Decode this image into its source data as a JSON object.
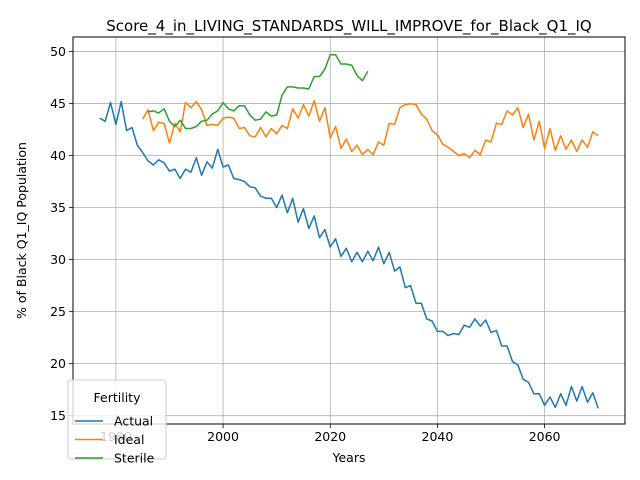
{
  "chart_data": {
    "type": "line",
    "title": "Score_4_in_LIVING_STANDARDS_WILL_IMPROVE_for_Black_Q1_IQ",
    "xlabel": "Years",
    "ylabel": "% of Black Q1_IQ Population",
    "xlim": [
      1972,
      2075
    ],
    "ylim": [
      14.2,
      51.4
    ],
    "xticks": [
      1980,
      2000,
      2020,
      2040,
      2060
    ],
    "yticks": [
      15,
      20,
      25,
      30,
      35,
      40,
      45,
      50
    ],
    "grid": true,
    "legend": {
      "title": "Fertility",
      "placement": "lower-left"
    },
    "series": [
      {
        "name": "Actual",
        "color": "#1f77b4",
        "x": [
          1977,
          1978,
          1979,
          1980,
          1981,
          1982,
          1983,
          1984,
          1985,
          1986,
          1987,
          1988,
          1989,
          1990,
          1991,
          1992,
          1993,
          1994,
          1995,
          1996,
          1997,
          1998,
          1999,
          2000,
          2001,
          2002,
          2003,
          2004,
          2005,
          2006,
          2007,
          2008,
          2009,
          2010,
          2011,
          2012,
          2013,
          2014,
          2015,
          2016,
          2017,
          2018,
          2019,
          2020,
          2021,
          2022,
          2023,
          2024,
          2025,
          2026,
          2027,
          2028,
          2029,
          2030,
          2031,
          2032,
          2033,
          2034,
          2035,
          2036,
          2037,
          2038,
          2039,
          2040,
          2041,
          2042,
          2043,
          2044,
          2045,
          2046,
          2047,
          2048,
          2049,
          2050,
          2051,
          2052,
          2053,
          2054,
          2055,
          2056,
          2057,
          2058,
          2059,
          2060,
          2061,
          2062,
          2063,
          2064,
          2065,
          2066,
          2067,
          2068,
          2069,
          2070
        ],
        "values": [
          43.6,
          43.3,
          45.1,
          43.0,
          45.2,
          42.4,
          42.7,
          41.0,
          40.3,
          39.5,
          39.1,
          39.6,
          39.3,
          38.5,
          38.7,
          37.8,
          38.7,
          38.4,
          39.8,
          38.1,
          39.4,
          38.8,
          40.6,
          38.9,
          39.1,
          37.8,
          37.7,
          37.5,
          37.0,
          36.9,
          36.1,
          35.9,
          35.9,
          35.0,
          36.2,
          34.5,
          35.9,
          33.6,
          34.9,
          33.0,
          34.2,
          32.1,
          32.9,
          31.2,
          32.0,
          30.3,
          31.1,
          29.8,
          30.7,
          29.8,
          30.8,
          29.9,
          31.2,
          29.6,
          30.7,
          28.9,
          29.3,
          27.3,
          27.5,
          25.8,
          25.8,
          24.3,
          24.1,
          23.1,
          23.1,
          22.7,
          22.9,
          22.8,
          23.7,
          23.5,
          24.3,
          23.6,
          24.2,
          23.0,
          23.2,
          21.7,
          21.7,
          20.2,
          19.9,
          18.5,
          18.2,
          17.1,
          17.1,
          16.0,
          16.8,
          15.8,
          17.1,
          16.0,
          17.8,
          16.4,
          17.8,
          16.3,
          17.2,
          15.7
        ]
      },
      {
        "name": "Ideal",
        "color": "#ff7f0e",
        "x": [
          1985,
          1986,
          1987,
          1988,
          1989,
          1990,
          1991,
          1992,
          1993,
          1994,
          1995,
          1996,
          1997,
          1998,
          1999,
          2000,
          2001,
          2002,
          2003,
          2004,
          2005,
          2006,
          2007,
          2008,
          2009,
          2010,
          2011,
          2012,
          2013,
          2014,
          2015,
          2016,
          2017,
          2018,
          2019,
          2020,
          2021,
          2022,
          2023,
          2024,
          2025,
          2026,
          2027,
          2028,
          2029,
          2030,
          2031,
          2032,
          2033,
          2034,
          2035,
          2036,
          2037,
          2038,
          2039,
          2040,
          2041,
          2042,
          2043,
          2044,
          2045,
          2046,
          2047,
          2048,
          2049,
          2050,
          2051,
          2052,
          2053,
          2054,
          2055,
          2056,
          2057,
          2058,
          2059,
          2060,
          2061,
          2062,
          2063,
          2064,
          2065,
          2066,
          2067,
          2068,
          2069,
          2070
        ],
        "values": [
          43.5,
          44.4,
          42.4,
          43.2,
          43.1,
          41.2,
          43.1,
          42.3,
          45.1,
          44.6,
          45.2,
          44.4,
          42.9,
          43.0,
          42.9,
          43.6,
          43.7,
          43.6,
          42.6,
          42.7,
          41.9,
          41.8,
          42.7,
          41.8,
          42.6,
          42.1,
          42.9,
          42.6,
          44.5,
          43.6,
          44.9,
          43.8,
          45.3,
          43.3,
          44.6,
          41.7,
          42.8,
          40.7,
          41.6,
          40.4,
          41.0,
          40.1,
          40.6,
          40.1,
          41.3,
          41.0,
          43.1,
          43.0,
          44.6,
          44.9,
          45.0,
          44.9,
          44.0,
          43.5,
          42.4,
          42.0,
          41.1,
          40.8,
          40.4,
          40.0,
          40.2,
          39.8,
          40.5,
          40.1,
          41.5,
          41.3,
          43.1,
          43.0,
          44.3,
          43.9,
          44.6,
          42.7,
          44.0,
          41.5,
          43.3,
          40.7,
          42.6,
          40.5,
          41.9,
          40.6,
          41.5,
          40.4,
          41.5,
          40.8,
          42.3,
          41.9
        ]
      },
      {
        "name": "Sterile",
        "color": "#2ca02c",
        "x": [
          1986,
          1987,
          1988,
          1989,
          1990,
          1991,
          1992,
          1993,
          1994,
          1995,
          1996,
          1997,
          1998,
          1999,
          2000,
          2001,
          2002,
          2003,
          2004,
          2005,
          2006,
          2007,
          2008,
          2009,
          2010,
          2011,
          2012,
          2013,
          2014,
          2015,
          2016,
          2017,
          2018,
          2019,
          2020,
          2021,
          2022,
          2023,
          2024,
          2025,
          2026,
          2027
        ],
        "values": [
          44.2,
          44.3,
          44.1,
          44.5,
          43.3,
          42.8,
          43.4,
          42.6,
          42.6,
          42.8,
          43.3,
          43.4,
          44.0,
          44.3,
          45.1,
          44.5,
          44.3,
          44.8,
          44.8,
          43.9,
          43.4,
          43.5,
          44.2,
          43.8,
          43.9,
          45.8,
          46.6,
          46.6,
          46.5,
          46.5,
          46.4,
          47.6,
          47.6,
          48.3,
          49.7,
          49.7,
          48.8,
          48.8,
          48.7,
          47.7,
          47.2,
          48.1
        ]
      }
    ]
  }
}
